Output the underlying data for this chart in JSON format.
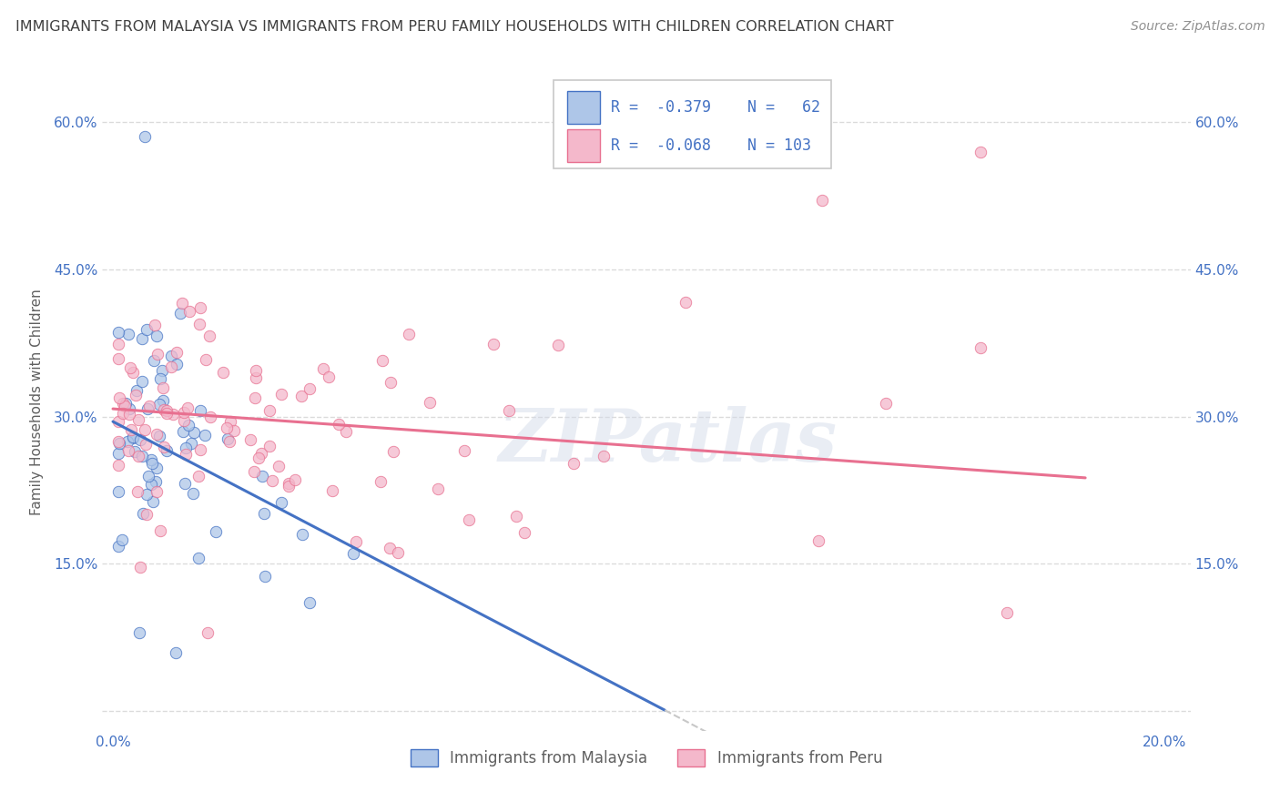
{
  "title": "IMMIGRANTS FROM MALAYSIA VS IMMIGRANTS FROM PERU FAMILY HOUSEHOLDS WITH CHILDREN CORRELATION CHART",
  "source": "Source: ZipAtlas.com",
  "ylabel": "Family Households with Children",
  "legend_malaysia": "Immigrants from Malaysia",
  "legend_peru": "Immigrants from Peru",
  "r_malaysia": -0.379,
  "n_malaysia": 62,
  "r_peru": -0.068,
  "n_peru": 103,
  "color_malaysia": "#aec6e8",
  "color_peru": "#f4b8cb",
  "line_malaysia": "#4472c4",
  "line_peru": "#e87090",
  "line_dashed": "#c8c8c8",
  "watermark": "ZIPatlas",
  "xlim": [
    -0.002,
    0.205
  ],
  "ylim": [
    -0.02,
    0.65
  ],
  "background": "#ffffff",
  "grid_color": "#d8d8d8",
  "title_color": "#404040",
  "source_color": "#909090",
  "tick_color": "#4472c4",
  "label_color": "#606060",
  "legend_text_color": "#4472c4",
  "legend_blue_color": "#4472c4"
}
